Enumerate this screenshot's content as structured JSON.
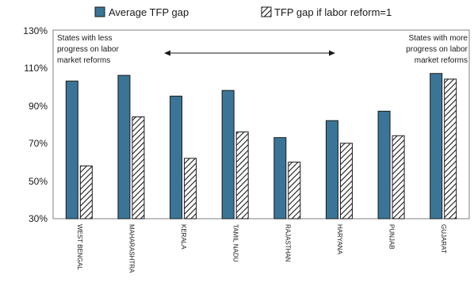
{
  "chart_data": {
    "type": "bar",
    "categories": [
      "WEST BENGAL",
      "MAHARASHTRA",
      "KERALA",
      "TAMIL NADU",
      "RAJASTHAN",
      "HARYANA",
      "PUNJAB",
      "GUJARAT"
    ],
    "series": [
      {
        "name": "Average TFP gap",
        "values": [
          103,
          106,
          95,
          98,
          73,
          82,
          87,
          107
        ],
        "color": "#3a7598",
        "pattern": "solid"
      },
      {
        "name": "TFP gap if labor reform=1",
        "values": [
          58,
          84,
          62,
          76,
          60,
          70,
          74,
          104
        ],
        "color": "#1a1a1a",
        "pattern": "diagonal-hatch"
      }
    ],
    "yticks": [
      "30%",
      "50%",
      "70%",
      "90%",
      "110%",
      "130%"
    ],
    "yticks_values": [
      30,
      50,
      70,
      90,
      110,
      130
    ],
    "ylim": [
      30,
      130
    ],
    "title": "",
    "xlabel": "",
    "ylabel": "",
    "legend_position": "top",
    "grid": false,
    "annotations": {
      "left": "States with less progress on labor market reforms",
      "right": "States with more progress on labor market reforms",
      "arrow": "double-headed"
    }
  }
}
